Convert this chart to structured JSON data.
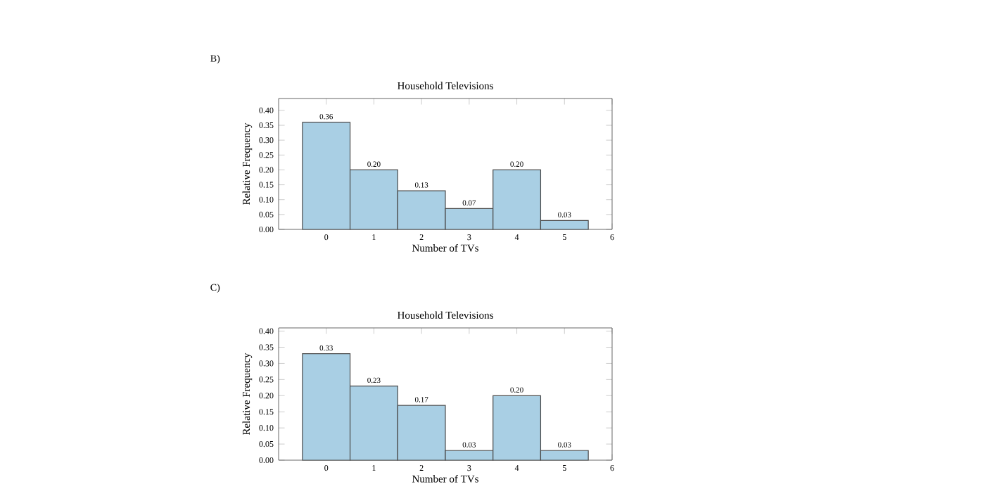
{
  "chart_data": [
    {
      "type": "histogram",
      "title": "Household Televisions",
      "xlabel": "Number of TVs",
      "ylabel": "Relative Frequency",
      "annotations": [
        "B)"
      ],
      "color": "#a9cfe4",
      "bins": [
        -0.5,
        0.5,
        1.5,
        2.5,
        3.5,
        4.5,
        5.5
      ],
      "values": [
        0.36,
        0.2,
        0.13,
        0.07,
        0.2,
        0.03
      ],
      "value_labels": [
        "0.36",
        "0.20",
        "0.13",
        "0.07",
        "0.20",
        "0.03"
      ],
      "xlim": [
        -1,
        6
      ],
      "xticks": [
        0,
        1,
        2,
        3,
        4,
        5,
        6
      ],
      "ylim": [
        0,
        0.44
      ],
      "yticks": [
        {
          "value": 0,
          "label": "0.00"
        },
        {
          "value": 0.05,
          "label": "0.05"
        },
        {
          "value": 0.1,
          "label": "0.10"
        },
        {
          "value": 0.15,
          "label": "0.15"
        },
        {
          "value": 0.2,
          "label": "0.20"
        },
        {
          "value": 0.25,
          "label": "0.25"
        },
        {
          "value": 0.3,
          "label": "0.30"
        },
        {
          "value": 0.35,
          "label": "0.35"
        },
        {
          "value": 0.4,
          "label": "0.40"
        }
      ]
    },
    {
      "type": "histogram",
      "title": "Household Televisions",
      "xlabel": "Number of TVs",
      "ylabel": "Relative Frequency",
      "annotations": [
        "C)"
      ],
      "color": "#a9cfe4",
      "bins": [
        -0.5,
        0.5,
        1.5,
        2.5,
        3.5,
        4.5,
        5.5
      ],
      "values": [
        0.33,
        0.23,
        0.17,
        0.03,
        0.2,
        0.03
      ],
      "value_labels": [
        "0.33",
        "0.23",
        "0.17",
        "0.03",
        "0.20",
        "0.03"
      ],
      "xlim": [
        -1,
        6
      ],
      "xticks": [
        0,
        1,
        2,
        3,
        4,
        5,
        6
      ],
      "ylim": [
        0,
        0.41
      ],
      "yticks": [
        {
          "value": 0,
          "label": "0.00"
        },
        {
          "value": 0.05,
          "label": "0.05"
        },
        {
          "value": 0.1,
          "label": "0.10"
        },
        {
          "value": 0.15,
          "label": "0.15"
        },
        {
          "value": 0.2,
          "label": "0.20"
        },
        {
          "value": 0.25,
          "label": "0.25"
        },
        {
          "value": 0.3,
          "label": "0.30"
        },
        {
          "value": 0.35,
          "label": "0.35"
        },
        {
          "value": 0.4,
          "label": "0.40"
        }
      ]
    }
  ]
}
